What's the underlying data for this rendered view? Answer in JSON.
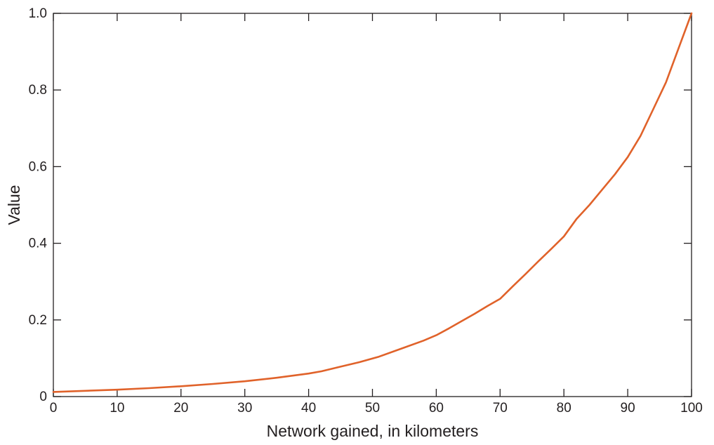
{
  "chart_data": {
    "type": "line",
    "xlabel": "Network gained, in kilometers",
    "ylabel": "Value",
    "xlim": [
      0,
      100
    ],
    "ylim": [
      0,
      1.0
    ],
    "xticks": [
      0,
      10,
      20,
      30,
      40,
      50,
      60,
      70,
      80,
      90,
      100
    ],
    "xtick_labels": [
      "0",
      "10",
      "20",
      "30",
      "40",
      "50",
      "60",
      "70",
      "80",
      "90",
      "100"
    ],
    "yticks": [
      0,
      0.2,
      0.4,
      0.6,
      0.8,
      1.0
    ],
    "ytick_labels": [
      "0",
      "0.2",
      "0.4",
      "0.6",
      "0.8",
      "1.0"
    ],
    "grid": false,
    "line_color": "#e0622a",
    "series": [
      {
        "x": [
          0,
          5,
          10,
          15,
          20,
          25,
          30,
          35,
          40,
          42,
          45,
          48,
          51,
          55,
          58,
          60,
          62,
          64,
          66,
          68,
          70,
          72,
          74,
          76,
          78,
          80,
          82,
          84,
          86,
          88,
          90,
          92,
          94,
          96,
          98,
          100
        ],
        "y": [
          0.012,
          0.015,
          0.018,
          0.022,
          0.027,
          0.033,
          0.04,
          0.049,
          0.06,
          0.066,
          0.078,
          0.09,
          0.104,
          0.128,
          0.146,
          0.16,
          0.178,
          0.197,
          0.216,
          0.236,
          0.255,
          0.288,
          0.32,
          0.353,
          0.385,
          0.418,
          0.464,
          0.5,
          0.54,
          0.58,
          0.625,
          0.68,
          0.75,
          0.82,
          0.91,
          1.0
        ]
      }
    ]
  }
}
